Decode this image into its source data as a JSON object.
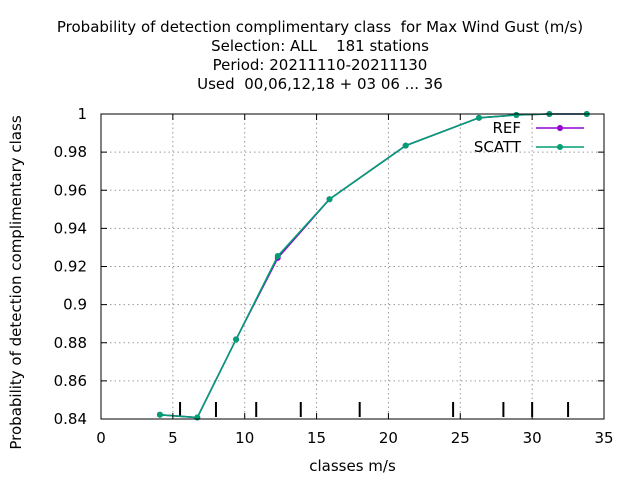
{
  "chart_data": {
    "type": "line",
    "title_lines": [
      "Probability of detection complimentary class  for Max Wind Gust (m/s)",
      "Selection: ALL    181 stations",
      "Period: 20211110-20211130",
      "Used  00,06,12,18 + 03 06 ... 36"
    ],
    "xlabel": "classes m/s",
    "ylabel": "Probability of detection complimentary class",
    "xlim": [
      0,
      35
    ],
    "ylim": [
      0.84,
      1.0
    ],
    "x_ticks": [
      "0",
      "5",
      "10",
      "15",
      "20",
      "25",
      "30",
      "35"
    ],
    "y_ticks": [
      "0.84",
      "0.86",
      "0.88",
      "0.9",
      "0.92",
      "0.94",
      "0.96",
      "0.98",
      "1"
    ],
    "x_tick_values": [
      0,
      5,
      10,
      15,
      20,
      25,
      30,
      35
    ],
    "y_tick_values": [
      0.84,
      0.86,
      0.88,
      0.9,
      0.92,
      0.94,
      0.96,
      0.98,
      1.0
    ],
    "grid": true,
    "class_marks": [
      5.5,
      8,
      10.8,
      13.9,
      18,
      24.5,
      28,
      30,
      32.5
    ],
    "legend_position": "top-right",
    "series": [
      {
        "name": "REF",
        "color": "#9400d3",
        "x": [
          4.1,
          6.7,
          9.4,
          12.3,
          15.9,
          21.2,
          26.3,
          28.9,
          31.2,
          33.8
        ],
        "y": [
          0.8422,
          0.8408,
          0.8818,
          0.9245,
          0.9553,
          0.9834,
          0.998,
          0.9995,
          1.0,
          1.0
        ]
      },
      {
        "name": "SCATT",
        "color": "#009e73",
        "x": [
          4.1,
          6.7,
          9.4,
          12.3,
          15.9,
          21.2,
          26.3,
          28.9,
          31.2,
          33.8
        ],
        "y": [
          0.8422,
          0.8408,
          0.8818,
          0.9255,
          0.9553,
          0.9834,
          0.998,
          0.9995,
          1.0,
          1.0
        ]
      }
    ]
  }
}
